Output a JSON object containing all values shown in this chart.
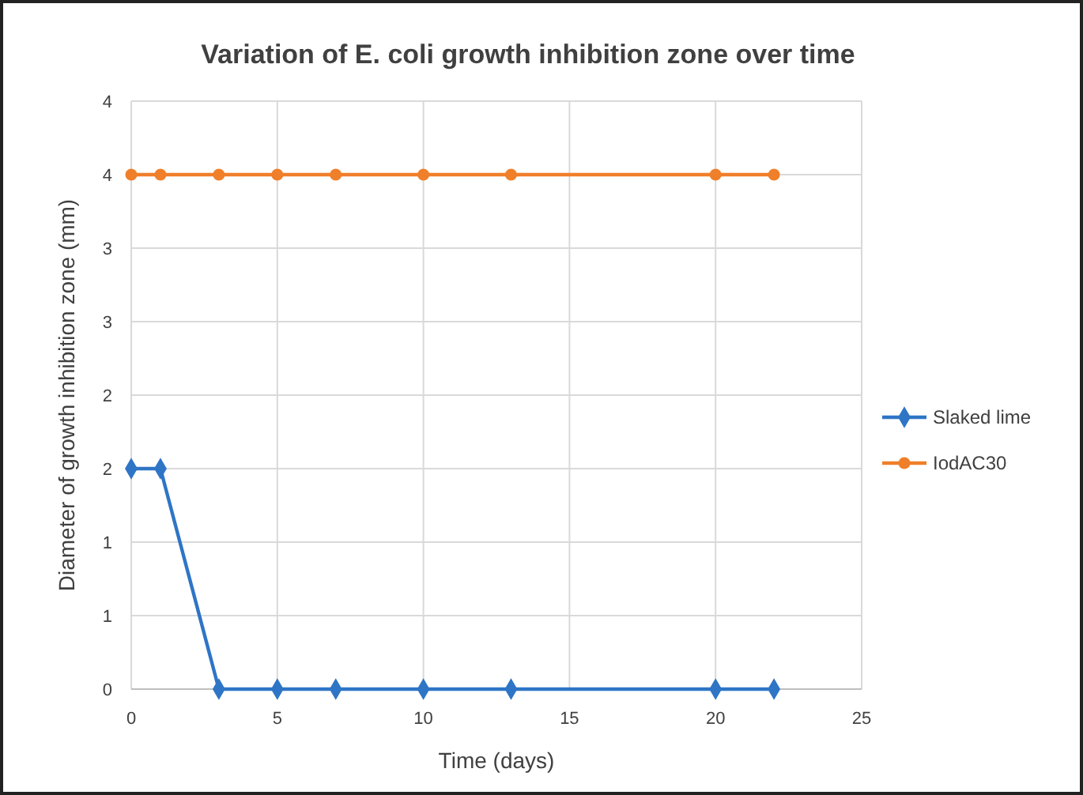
{
  "chart_data": {
    "type": "line",
    "title": "Variation of E. coli growth inhibition zone over time",
    "xlabel": "Time (days)",
    "ylabel": "Diameter of growth inhibition zone (mm)",
    "x": [
      0,
      1,
      3,
      5,
      7,
      10,
      13,
      20,
      22
    ],
    "series": [
      {
        "name": "Slaked lime",
        "color": "#2e75c6",
        "marker": "diamond",
        "values": [
          1.5,
          1.5,
          0,
          0,
          0,
          0,
          0,
          0,
          0
        ]
      },
      {
        "name": "IodAC30",
        "color": "#f07f2a",
        "marker": "circle",
        "values": [
          3.5,
          3.5,
          3.5,
          3.5,
          3.5,
          3.5,
          3.5,
          3.5,
          3.5
        ]
      }
    ],
    "xlim": [
      0,
      25
    ],
    "xticks": [
      0,
      5,
      10,
      15,
      20,
      25
    ],
    "ylim": [
      0,
      4
    ],
    "yticks": [
      0,
      {
        "value": 0.5,
        "label": "1"
      },
      {
        "value": 1,
        "label": "1"
      },
      {
        "value": 1.5,
        "label": "2"
      },
      {
        "value": 2,
        "label": "2"
      },
      {
        "value": 2.5,
        "label": "3"
      },
      {
        "value": 3,
        "label": "3"
      },
      {
        "value": 3.5,
        "label": "4"
      },
      {
        "value": 4,
        "label": "4"
      }
    ],
    "grid": true,
    "legend": "right"
  }
}
